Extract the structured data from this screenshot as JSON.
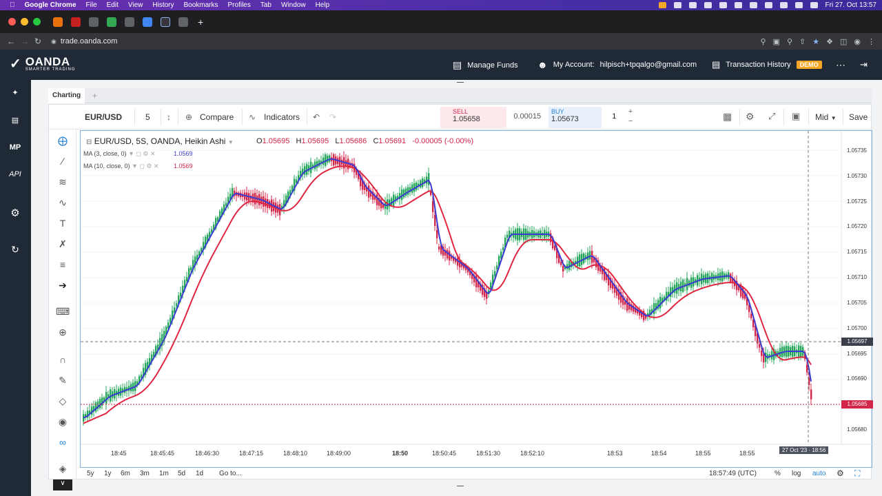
{
  "mac_menu": {
    "app": "Google Chrome",
    "items": [
      "File",
      "Edit",
      "View",
      "History",
      "Bookmarks",
      "Profiles",
      "Tab",
      "Window",
      "Help"
    ],
    "clock": "Fri 27. Oct 13:57"
  },
  "browser": {
    "url": "trade.oanda.com"
  },
  "header": {
    "logo_name": "OANDA",
    "logo_sub": "SMARTER TRADING",
    "manage_funds": "Manage Funds",
    "my_account_label": "My Account:",
    "account_email": "hilpisch+tpqalgo@gmail.com",
    "transaction_history": "Transaction History",
    "badge": "DEMO"
  },
  "rail": {
    "mp": "MP",
    "api": "API"
  },
  "charting_tab": "Charting",
  "toolbar": {
    "symbol": "EUR/USD",
    "interval": "5",
    "compare": "Compare",
    "indicators": "Indicators",
    "mid": "Mid",
    "save": "Save"
  },
  "trade": {
    "sell_label": "SELL",
    "sell_price": "1.05658",
    "spread": "0.00015",
    "buy_label": "BUY",
    "buy_price": "1.05673",
    "qty": "1"
  },
  "legend": {
    "title": "EUR/USD, 5S, OANDA, Heikin Ashi",
    "o": "O",
    "ov": "1.05695",
    "h": "H",
    "hv": "1.05695",
    "l": "L",
    "lv": "1.05686",
    "c": "C",
    "cv": "1.05691",
    "chg": "-0.00005 (-0.00%)",
    "ma1": "MA (3, close, 0)",
    "ma1_val": "1.0569",
    "ma2": "MA (10, close, 0)",
    "ma2_val": "1.0569"
  },
  "y_labels": [
    "1.05735",
    "1.05730",
    "1.05725",
    "1.05720",
    "1.05715",
    "1.05710",
    "1.05705",
    "1.05700",
    "1.05695",
    "1.05690",
    "1.05680"
  ],
  "crosshair_price": "1.05697",
  "last_price": "1.05685",
  "x_labels": [
    "18:45",
    "18:45:45",
    "18:46:30",
    "18:47:15",
    "18:48:10",
    "18:49:00",
    "18:50",
    "18:50:45",
    "18:51:30",
    "18:52:10",
    "18:53",
    "18:54",
    "18:55",
    "18:55"
  ],
  "hover_date": "27 Oct '23 · 18:56",
  "bottom": {
    "ranges": [
      "5y",
      "1y",
      "6m",
      "3m",
      "1m",
      "5d",
      "1d"
    ],
    "goto": "Go to...",
    "clock": "18:57:49 (UTC)",
    "pct": "%",
    "log": "log",
    "auto": "auto"
  },
  "colors": {
    "up": "#26a65b",
    "down": "#d2264a",
    "ma_fast": "#3b3bd1",
    "ma_slow": "#e0263f",
    "accent": "#1e7fd1"
  }
}
